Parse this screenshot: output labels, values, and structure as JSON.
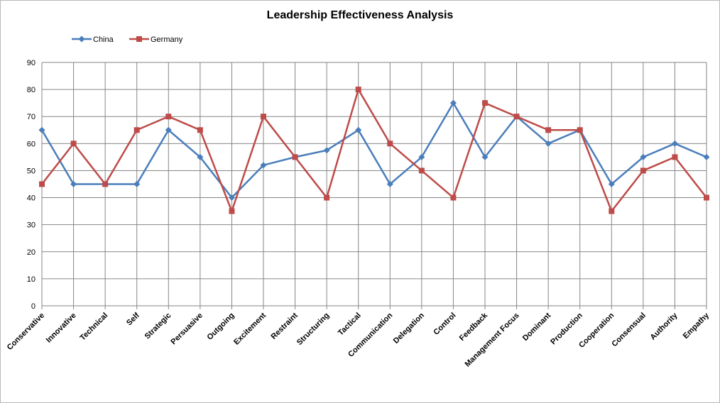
{
  "chart_data": {
    "type": "line",
    "title": "Leadership Effectiveness Analysis",
    "xlabel": "",
    "ylabel": "",
    "ylim": [
      0,
      90
    ],
    "yticks": [
      0,
      10,
      20,
      30,
      40,
      50,
      60,
      70,
      80,
      90
    ],
    "grid": true,
    "legend_position": "top-left",
    "categories": [
      "Conservative",
      "Innovative",
      "Technical",
      "Self",
      "Strategic",
      "Persuasive",
      "Outgoing",
      "Excitement",
      "Restraint",
      "Structuring",
      "Tactical",
      "Communication",
      "Delegation",
      "Control",
      "Feedback",
      "Management Focus",
      "Dominant",
      "Production",
      "Cooperation",
      "Consensual",
      "Authority",
      "Empathy"
    ],
    "series": [
      {
        "name": "China",
        "color": "#4a7ebb",
        "marker": "diamond",
        "values": [
          65,
          45,
          45,
          45,
          65,
          55,
          40,
          52,
          55,
          57.5,
          65,
          45,
          55,
          75,
          55,
          70,
          60,
          65,
          45,
          55,
          60,
          55
        ]
      },
      {
        "name": "Germany",
        "color": "#be4b48",
        "marker": "square",
        "values": [
          45,
          60,
          45,
          65,
          70,
          65,
          35,
          70,
          55,
          40,
          80,
          60,
          50,
          40,
          75,
          70,
          65,
          65,
          35,
          50,
          55,
          40
        ]
      }
    ]
  }
}
